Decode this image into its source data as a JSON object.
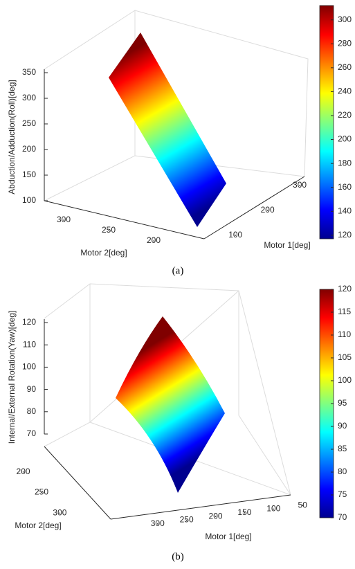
{
  "chart_data": [
    {
      "type": "surface",
      "caption": "(a)",
      "zlabel": "Abduction/Adduction(Roll)[deg]",
      "xlabel": "Motor 1[deg]",
      "ylabel": "Motor 2[deg]",
      "xlim": [
        50,
        330
      ],
      "xticks": [
        100,
        200,
        300
      ],
      "ylim": [
        180,
        330
      ],
      "yticks": [
        300,
        250,
        200
      ],
      "zlim": [
        100,
        350
      ],
      "zticks": [
        100,
        150,
        200,
        250,
        300,
        350
      ],
      "colormap": "jet",
      "clim": [
        117,
        312
      ],
      "cticks": [
        120,
        140,
        160,
        180,
        200,
        220,
        240,
        260,
        280,
        300
      ]
    },
    {
      "type": "surface",
      "caption": "(b)",
      "zlabel": "Internal/External Rotation(Yaw)[deg]",
      "xlabel": "Motor 1[deg]",
      "ylabel": "Motor 2[deg]",
      "xlim": [
        30,
        320
      ],
      "xticks": [
        300,
        250,
        200,
        150,
        100,
        50
      ],
      "ylim": [
        180,
        320
      ],
      "yticks": [
        200,
        250,
        300
      ],
      "zlim": [
        70,
        120
      ],
      "zticks": [
        70,
        80,
        90,
        100,
        110,
        120
      ],
      "colormap": "jet",
      "clim": [
        70,
        120
      ],
      "cticks": [
        70,
        75,
        80,
        85,
        90,
        95,
        100,
        105,
        110,
        115,
        120
      ]
    }
  ]
}
